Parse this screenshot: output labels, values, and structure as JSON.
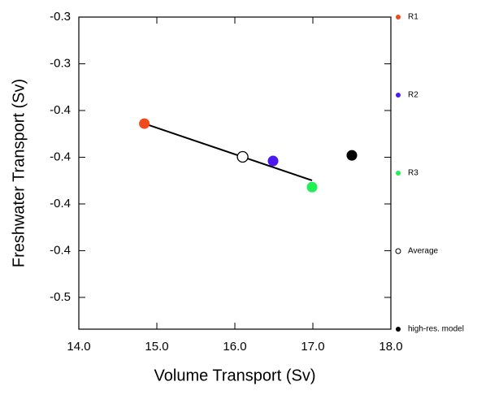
{
  "chart_data": {
    "type": "scatter",
    "xlabel": "Volume Transport (Sv)",
    "ylabel": "Freshwater Transport (Sv)",
    "xlim": [
      14.0,
      18.0
    ],
    "xticks": [
      {
        "value": 14,
        "label": "14.0"
      },
      {
        "value": 15,
        "label": "15.0"
      },
      {
        "value": 16,
        "label": "16.0"
      },
      {
        "value": 17,
        "label": "17.0"
      },
      {
        "value": 18,
        "label": "18.0"
      }
    ],
    "ylim": [
      -0.467,
      -0.3
    ],
    "yticks": [
      {
        "value": -0.3,
        "label": "-0.3"
      },
      {
        "value": -0.325,
        "label": "-0.3"
      },
      {
        "value": -0.35,
        "label": "-0.4"
      },
      {
        "value": -0.375,
        "label": "-0.4"
      },
      {
        "value": -0.4,
        "label": "-0.4"
      },
      {
        "value": -0.425,
        "label": "-0.4"
      },
      {
        "value": -0.45,
        "label": "-0.5"
      }
    ],
    "fit_line": {
      "x": [
        14.84,
        16.99
      ],
      "values": [
        -0.357,
        -0.3874
      ],
      "color": "#000000"
    },
    "series": [
      {
        "name": "R1",
        "color": "#f04a1a",
        "filled": true,
        "x": [
          14.84
        ],
        "values": [
          -0.357
        ]
      },
      {
        "name": "R2",
        "color": "#4a1aef",
        "filled": true,
        "x": [
          16.49
        ],
        "values": [
          -0.377
        ]
      },
      {
        "name": "R3",
        "color": "#22ee55",
        "filled": true,
        "x": [
          16.99
        ],
        "values": [
          -0.391
        ]
      },
      {
        "name": "Average",
        "color": "#000000",
        "filled": false,
        "x": [
          16.1
        ],
        "values": [
          -0.3748
        ]
      },
      {
        "name": "high-res. model",
        "color": "#000000",
        "filled": true,
        "x": [
          17.5
        ],
        "values": [
          -0.374
        ]
      }
    ],
    "legend": "right"
  }
}
